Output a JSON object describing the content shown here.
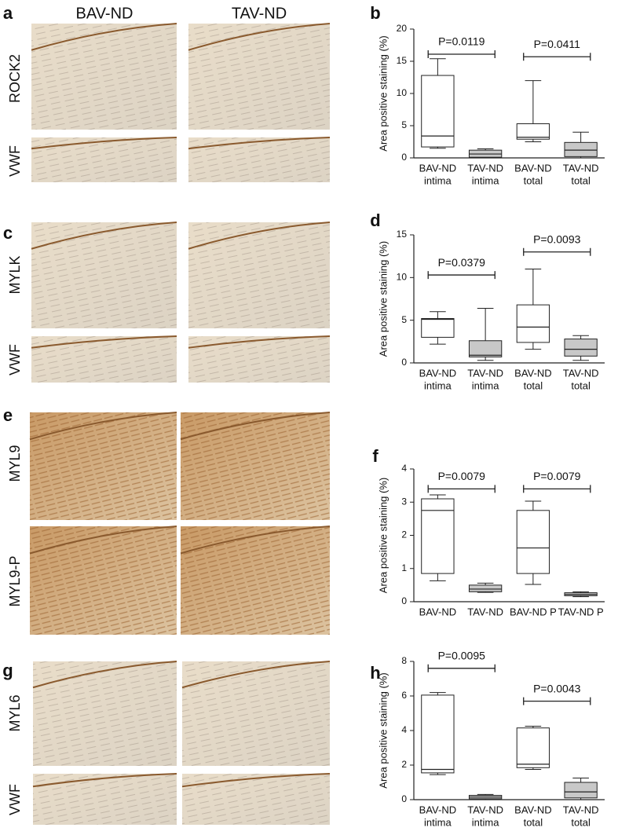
{
  "figure": {
    "column_headers": [
      "BAV-ND",
      "TAV-ND"
    ],
    "panel_letters": [
      "a",
      "b",
      "c",
      "d",
      "e",
      "f",
      "g",
      "h"
    ],
    "row_labels": [
      "ROCK2",
      "VWF",
      "MYLK",
      "VWF",
      "MYL9",
      "MYL9-P",
      "MYL6",
      "VWF"
    ]
  },
  "chart_data": [
    {
      "type": "box",
      "ylabel": "Area positive staining (%)",
      "categories": [
        [
          "BAV-ND",
          "intima"
        ],
        [
          "TAV-ND",
          "intima"
        ],
        [
          "BAV-ND",
          "total"
        ],
        [
          "TAV-ND",
          "total"
        ]
      ],
      "colors": [
        "#ffffff",
        "#c8c8c8",
        "#ffffff",
        "#c8c8c8"
      ],
      "boxes": [
        {
          "min": 1.5,
          "q1": 1.7,
          "median": 3.4,
          "q3": 12.8,
          "max": 15.4
        },
        {
          "min": 0,
          "q1": 0.1,
          "median": 0.6,
          "q3": 1.2,
          "max": 1.4
        },
        {
          "min": 2.5,
          "q1": 2.9,
          "median": 3.2,
          "q3": 5.3,
          "max": 12
        },
        {
          "min": 0,
          "q1": 0.2,
          "median": 1.2,
          "q3": 2.4,
          "max": 4
        }
      ],
      "ylim": [
        0,
        20
      ],
      "yticks": [
        0,
        5,
        10,
        15,
        20
      ],
      "comparisons": [
        {
          "label": "P=0.0119",
          "from": 0,
          "to": 1,
          "y": 16.1
        },
        {
          "label": "P=0.0411",
          "from": 2,
          "to": 3,
          "y": 15.7
        }
      ]
    },
    {
      "type": "box",
      "ylabel": "Area positive staining (%)",
      "categories": [
        [
          "BAV-ND",
          "intima"
        ],
        [
          "TAV-ND",
          "intima"
        ],
        [
          "BAV-ND",
          "total"
        ],
        [
          "TAV-ND",
          "total"
        ]
      ],
      "colors": [
        "#ffffff",
        "#c8c8c8",
        "#ffffff",
        "#c8c8c8"
      ],
      "boxes": [
        {
          "min": 2.2,
          "q1": 3,
          "median": 5.1,
          "q3": 5.2,
          "max": 6
        },
        {
          "min": 0.3,
          "q1": 0.7,
          "median": 0.9,
          "q3": 2.6,
          "max": 6.4
        },
        {
          "min": 1.6,
          "q1": 2.4,
          "median": 4.2,
          "q3": 6.8,
          "max": 11
        },
        {
          "min": 0.3,
          "q1": 0.8,
          "median": 1.6,
          "q3": 2.8,
          "max": 3.2
        }
      ],
      "ylim": [
        0,
        15
      ],
      "yticks": [
        0,
        5,
        10,
        15
      ],
      "comparisons": [
        {
          "label": "P=0.0379",
          "from": 0,
          "to": 1,
          "y": 10.3
        },
        {
          "label": "P=0.0093",
          "from": 2,
          "to": 3,
          "y": 13
        }
      ]
    },
    {
      "type": "box",
      "ylabel": "Area positive staining (%)",
      "categories": [
        [
          "BAV-ND"
        ],
        [
          "TAV-ND"
        ],
        [
          "BAV-ND P"
        ],
        [
          "TAV-ND P"
        ]
      ],
      "colors": [
        "#ffffff",
        "#c8c8c8",
        "#ffffff",
        "#c8c8c8"
      ],
      "boxes": [
        {
          "min": 0.63,
          "q1": 0.85,
          "median": 2.75,
          "q3": 3.1,
          "max": 3.22
        },
        {
          "min": 0.28,
          "q1": 0.3,
          "median": 0.38,
          "q3": 0.5,
          "max": 0.56
        },
        {
          "min": 0.52,
          "q1": 0.85,
          "median": 1.62,
          "q3": 2.75,
          "max": 3.03
        },
        {
          "min": 0.15,
          "q1": 0.18,
          "median": 0.22,
          "q3": 0.27,
          "max": 0.3
        }
      ],
      "ylim": [
        0,
        4
      ],
      "yticks": [
        0,
        1,
        2,
        3,
        4
      ],
      "comparisons": [
        {
          "label": "P=0.0079",
          "from": 0,
          "to": 1,
          "y": 3.4
        },
        {
          "label": "P=0.0079",
          "from": 2,
          "to": 3,
          "y": 3.4
        }
      ]
    },
    {
      "type": "box",
      "ylabel": "Area positive staining (%)",
      "categories": [
        [
          "BAV-ND",
          "intima"
        ],
        [
          "TAV-ND",
          "intima"
        ],
        [
          "BAV-ND",
          "total"
        ],
        [
          "TAV-ND",
          "total"
        ]
      ],
      "colors": [
        "#ffffff",
        "#c8c8c8",
        "#ffffff",
        "#c8c8c8"
      ],
      "boxes": [
        {
          "min": 1.45,
          "q1": 1.55,
          "median": 1.75,
          "q3": 6.05,
          "max": 6.2
        },
        {
          "min": 0,
          "q1": 0.05,
          "median": 0.15,
          "q3": 0.25,
          "max": 0.3
        },
        {
          "min": 1.75,
          "q1": 1.85,
          "median": 2.05,
          "q3": 4.15,
          "max": 4.25
        },
        {
          "min": 0,
          "q1": 0.1,
          "median": 0.45,
          "q3": 1,
          "max": 1.25
        }
      ],
      "ylim": [
        0,
        8
      ],
      "yticks": [
        0,
        2,
        4,
        6,
        8
      ],
      "comparisons": [
        {
          "label": "P=0.0095",
          "from": 0,
          "to": 1,
          "y": 7.6
        },
        {
          "label": "P=0.0043",
          "from": 2,
          "to": 3,
          "y": 5.7
        }
      ]
    }
  ]
}
